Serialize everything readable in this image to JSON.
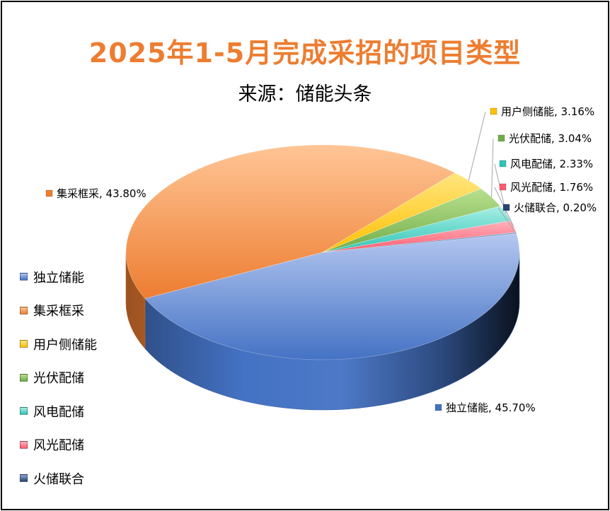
{
  "chart_data": {
    "type": "pie",
    "title": "2025年1-5月完成采招的项目类型",
    "subtitle": "来源：储能头条",
    "legend_position": "left",
    "three_d": true,
    "categories": [
      "独立储能",
      "集采框采",
      "用户侧储能",
      "光伏配储",
      "风电配储",
      "风光配储",
      "火储联合"
    ],
    "values": [
      45.7,
      43.8,
      3.16,
      3.04,
      2.33,
      1.76,
      0.2
    ],
    "value_labels": [
      "45.70%",
      "43.80%",
      "3.16%",
      "3.04%",
      "2.33%",
      "1.76%",
      "0.20%"
    ],
    "colors": [
      "#4472C4",
      "#ED7D31",
      "#FFC000",
      "#70AD47",
      "#2EC4B6",
      "#FF5A6E",
      "#264478"
    ],
    "light_colors": [
      "#B4C7F0",
      "#FFC596",
      "#FFE680",
      "#B9E08F",
      "#A8EFE6",
      "#FFB3BD",
      "#8FA6CF"
    ]
  }
}
